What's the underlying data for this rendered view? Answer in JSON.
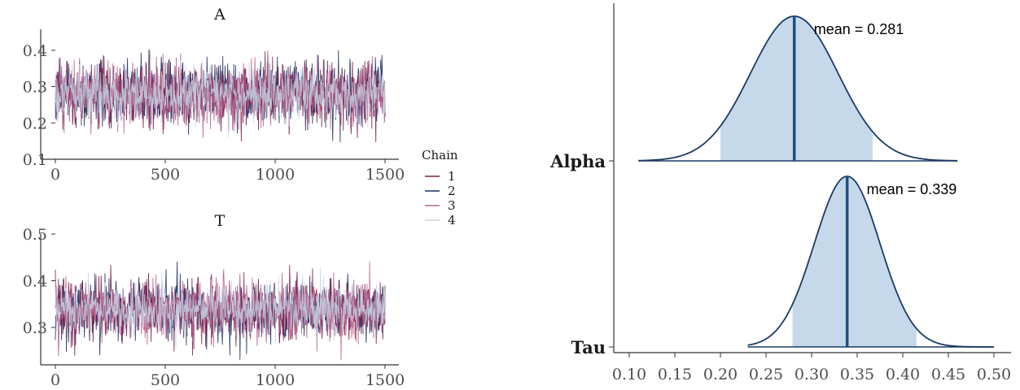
{
  "chart_data": [
    {
      "type": "line",
      "title": "A",
      "xlim": [
        0,
        1500
      ],
      "ylim": [
        0.1,
        0.46
      ],
      "xticks": [
        "0",
        "500",
        "1000",
        "1500"
      ],
      "yticks": [
        "0.1",
        "0.2",
        "0.3",
        "0.4"
      ],
      "iterations": 1500,
      "center": 0.281,
      "spread": 0.048,
      "min_value": 0.11,
      "max_value": 0.46,
      "series": [
        {
          "name": "1",
          "color": "#7a1e4a"
        },
        {
          "name": "2",
          "color": "#1d2e5e"
        },
        {
          "name": "3",
          "color": "#b5628c"
        },
        {
          "name": "4",
          "color": "#c6d4e6"
        }
      ]
    },
    {
      "type": "line",
      "title": "T",
      "xlim": [
        0,
        1500
      ],
      "ylim": [
        0.22,
        0.5
      ],
      "xticks": [
        "0",
        "500",
        "1000",
        "1500"
      ],
      "yticks": [
        "0.3",
        "0.4",
        "0.5"
      ],
      "iterations": 1500,
      "center": 0.339,
      "spread": 0.036,
      "min_value": 0.23,
      "max_value": 0.5,
      "series": [
        {
          "name": "1",
          "color": "#7a1e4a"
        },
        {
          "name": "2",
          "color": "#1d2e5e"
        },
        {
          "name": "3",
          "color": "#b5628c"
        },
        {
          "name": "4",
          "color": "#c6d4e6"
        }
      ]
    },
    {
      "type": "area",
      "xlim": [
        0.1,
        0.5
      ],
      "xticks": [
        "0.10",
        "0.15",
        "0.20",
        "0.25",
        "0.30",
        "0.35",
        "0.40",
        "0.45",
        "0.50"
      ],
      "categories": [
        "Alpha",
        "Tau"
      ],
      "densities": [
        {
          "name": "Alpha",
          "mean": 0.281,
          "mean_label": "mean = 0.281",
          "sd": 0.048,
          "range": [
            0.11,
            0.46
          ],
          "interval": [
            0.2,
            0.367
          ]
        },
        {
          "name": "Tau",
          "mean": 0.339,
          "mean_label": "mean = 0.339",
          "sd": 0.036,
          "range": [
            0.23,
            0.5
          ],
          "interval": [
            0.279,
            0.415
          ]
        }
      ],
      "fill_color": "#c6d9ea",
      "line_color": "#1b3a66",
      "mean_color": "#1f4e82"
    }
  ],
  "legend": {
    "title": "Chain",
    "items": [
      {
        "label": "1",
        "color": "#7a1e4a"
      },
      {
        "label": "2",
        "color": "#1d2e5e"
      },
      {
        "label": "3",
        "color": "#b5628c"
      },
      {
        "label": "4",
        "color": "#c6d4e6"
      }
    ]
  }
}
